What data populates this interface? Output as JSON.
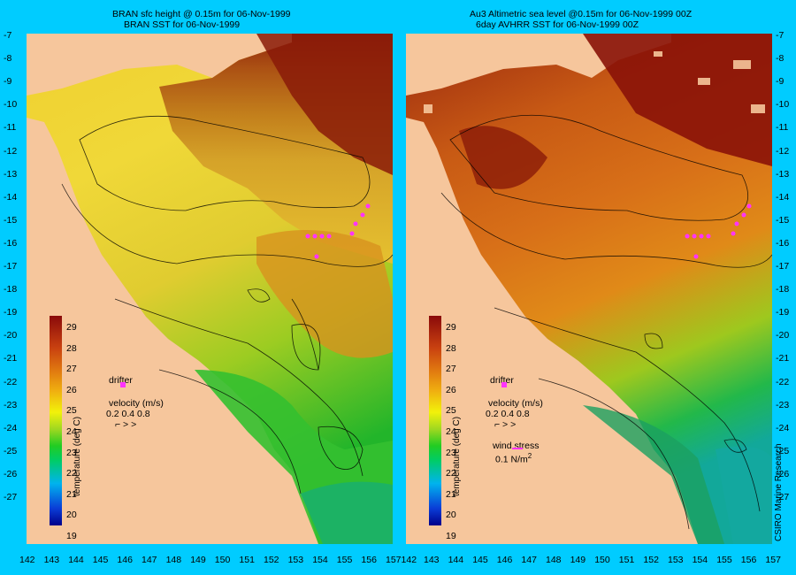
{
  "left_panel": {
    "title_line1": "BRAN sfc height @ 0.15m for 06-Nov-1999",
    "title_line2": "BRAN SST for 06-Nov-1999"
  },
  "right_panel": {
    "title_line1": "Au3 Altimetric sea level  @0.15m  for 06-Nov-1999 00Z",
    "title_line2": "6day AVHRR SST for 06-Nov-1999 00Z"
  },
  "y_axis": {
    "ticks": [
      "-7",
      "-8",
      "-9",
      "-10",
      "-11",
      "-12",
      "-13",
      "-14",
      "-15",
      "-16",
      "-17",
      "-18",
      "-19",
      "-20",
      "-21",
      "-22",
      "-23",
      "-24",
      "-25",
      "-26",
      "-27"
    ]
  },
  "x_axis": {
    "left_ticks": [
      "142",
      "143",
      "144",
      "145",
      "146",
      "147",
      "148",
      "149",
      "150",
      "151",
      "152",
      "153",
      "154",
      "155",
      "156"
    ],
    "shared_tick": "157142",
    "right_ticks": [
      "143",
      "144",
      "145",
      "146",
      "147",
      "148",
      "149",
      "150",
      "151",
      "152",
      "153",
      "154",
      "155",
      "156",
      "157"
    ]
  },
  "colorbar": {
    "title": "temperature (deg C)",
    "ticks": [
      "29",
      "28",
      "27",
      "26",
      "25",
      "24",
      "23",
      "22",
      "21",
      "20",
      "19"
    ]
  },
  "legend": {
    "drifter": "drifter",
    "velocity_label": "velocity (m/s)",
    "velocity_values": "0.2 0.4 0.8",
    "velocity_arrows": "⌐   >   >",
    "wind_stress_label": "wind stress",
    "wind_stress_value": "0.1 N/m",
    "wind_stress_exp": "2"
  },
  "credit": "CSIRO Marine Research",
  "colors": {
    "background": "#00ccff",
    "land": "#f6c69c",
    "drifter_marker": "#ff33ff"
  }
}
